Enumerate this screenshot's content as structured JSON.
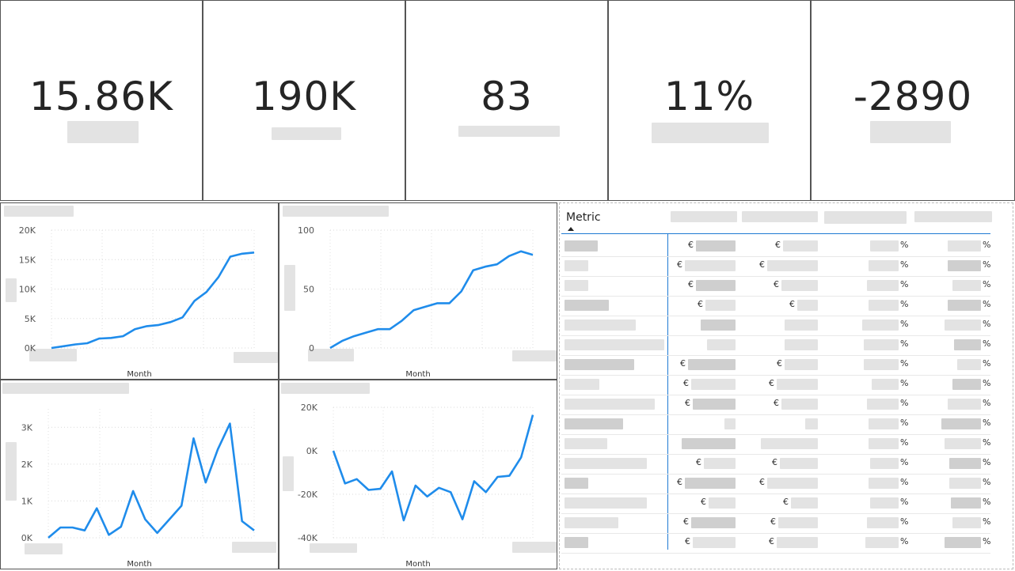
{
  "kpis": [
    {
      "value": "15.86K"
    },
    {
      "value": "190K"
    },
    {
      "value": "83"
    },
    {
      "value": "11%"
    },
    {
      "value": "-2890"
    }
  ],
  "colors": {
    "line": "#1f8ceb",
    "accent": "#1f7ad3"
  },
  "charts": {
    "c1": {
      "x_label": "Month"
    },
    "c2": {
      "x_label": "Month"
    },
    "c3": {
      "x_label": "Month"
    },
    "c4": {
      "x_label": "Month"
    }
  },
  "chart_data": [
    {
      "type": "line",
      "xlabel": "Month",
      "yticks": [
        "20K",
        "15K",
        "10K",
        "5K",
        "0K"
      ],
      "ylim": [
        0,
        20000
      ],
      "series": [
        {
          "values": [
            0,
            300,
            600,
            800,
            1600,
            1700,
            2000,
            3200,
            3700,
            3900,
            4400,
            5200,
            8000,
            9500,
            12000,
            15500,
            16000,
            16200
          ]
        }
      ]
    },
    {
      "type": "line",
      "xlabel": "Month",
      "yticks": [
        "100",
        "50",
        "0"
      ],
      "ylim": [
        0,
        100
      ],
      "series": [
        {
          "values": [
            0,
            6,
            10,
            13,
            16,
            16,
            23,
            32,
            35,
            38,
            38,
            48,
            66,
            69,
            71,
            78,
            82,
            79
          ]
        }
      ]
    },
    {
      "type": "line",
      "xlabel": "Month",
      "yticks": [
        "3K",
        "2K",
        "1K",
        "0K"
      ],
      "ylim": [
        0,
        3500
      ],
      "series": [
        {
          "values": [
            0,
            280,
            280,
            200,
            800,
            80,
            300,
            1270,
            500,
            130,
            500,
            870,
            2700,
            1500,
            2400,
            3100,
            450,
            200
          ]
        }
      ]
    },
    {
      "type": "line",
      "xlabel": "Month",
      "yticks": [
        "20K",
        "0K",
        "-20K",
        "-40K"
      ],
      "ylim": [
        -40000,
        20000
      ],
      "series": [
        {
          "values": [
            0,
            -15000,
            -13000,
            -18000,
            -17500,
            -9500,
            -32000,
            -16000,
            -21000,
            -17000,
            -19000,
            -31500,
            -14000,
            -19000,
            -12000,
            -11500,
            -3000,
            16500
          ]
        }
      ]
    }
  ],
  "table": {
    "header": "Metric",
    "row_count": 16,
    "rows": [
      {
        "c1": "€",
        "c2": "€",
        "c3": "%",
        "c4": "%"
      },
      {
        "c1": "€",
        "c2": "€",
        "c3": "%",
        "c4": "%"
      },
      {
        "c1": "€",
        "c2": "€",
        "c3": "%",
        "c4": "%"
      },
      {
        "c1": "€",
        "c2": "€",
        "c3": "%",
        "c4": "%"
      },
      {
        "c1": "",
        "c2": "",
        "c3": "%",
        "c4": "%"
      },
      {
        "c1": "",
        "c2": "",
        "c3": "%",
        "c4": "%"
      },
      {
        "c1": "€",
        "c2": "€",
        "c3": "%",
        "c4": "%"
      },
      {
        "c1": "€",
        "c2": "€",
        "c3": "%",
        "c4": "%"
      },
      {
        "c1": "€",
        "c2": "€",
        "c3": "%",
        "c4": "%"
      },
      {
        "c1": "",
        "c2": "",
        "c3": "%",
        "c4": "%"
      },
      {
        "c1": "",
        "c2": "",
        "c3": "%",
        "c4": "%"
      },
      {
        "c1": "€",
        "c2": "€",
        "c3": "%",
        "c4": "%"
      },
      {
        "c1": "€",
        "c2": "€",
        "c3": "%",
        "c4": "%"
      },
      {
        "c1": "€",
        "c2": "€",
        "c3": "%",
        "c4": "%"
      },
      {
        "c1": "€",
        "c2": "€",
        "c3": "%",
        "c4": "%"
      },
      {
        "c1": "€",
        "c2": "€",
        "c3": "%",
        "c4": "%"
      }
    ]
  }
}
